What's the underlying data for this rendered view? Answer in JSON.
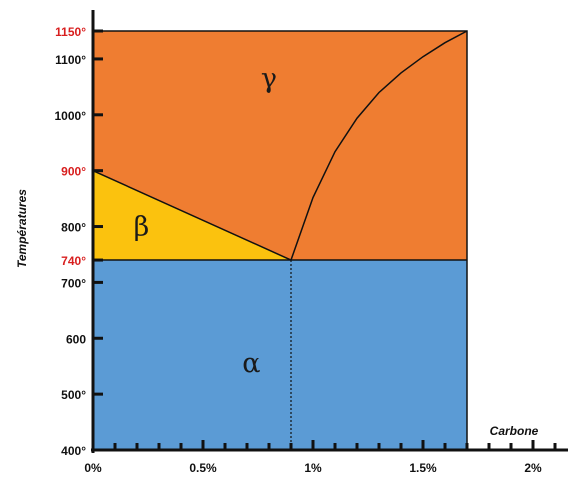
{
  "chart_data": {
    "type": "phase-diagram",
    "ylabel": "Températures",
    "xlabel": "Carbone",
    "x_unit": "% carbon",
    "xlim": [
      0,
      2.5
    ],
    "ylim": [
      400,
      1150
    ],
    "x_ticks": [
      {
        "value": 0,
        "label": "0%"
      },
      {
        "value": 0.5,
        "label": "0.5%"
      },
      {
        "value": 1,
        "label": "1%"
      },
      {
        "value": 1.5,
        "label": "1.5%"
      },
      {
        "value": 2,
        "label": "2%"
      }
    ],
    "y_ticks": [
      {
        "value": 400,
        "label": "400°",
        "highlight": false
      },
      {
        "value": 500,
        "label": "500°",
        "highlight": false
      },
      {
        "value": 600,
        "label": "600",
        "highlight": false
      },
      {
        "value": 700,
        "label": "700°",
        "highlight": false
      },
      {
        "value": 740,
        "label": "740°",
        "highlight": true
      },
      {
        "value": 800,
        "label": "800°",
        "highlight": false
      },
      {
        "value": 900,
        "label": "900°",
        "highlight": true
      },
      {
        "value": 1000,
        "label": "1000°",
        "highlight": false
      },
      {
        "value": 1100,
        "label": "1100°",
        "highlight": false
      },
      {
        "value": 1150,
        "label": "1150°",
        "highlight": true
      }
    ],
    "phases": [
      {
        "label": "α",
        "color": "#5b9bd5",
        "region": "below 740°, 0% to 1.7%",
        "label_pos": [
          0.72,
          540
        ]
      },
      {
        "label": "β",
        "color": "#fbc20e",
        "region": "triangle 900° at 0% to 740° at 0.9%",
        "label_pos": [
          0.22,
          784
        ]
      },
      {
        "label": "γ",
        "color": "#ef7d31",
        "region": "above β and 740° line, up to 1150°",
        "label_pos": [
          0.8,
          1049
        ]
      }
    ],
    "eutectoid_point": {
      "x": 0.9,
      "y": 740
    },
    "max_carbon": 1.7,
    "boundary_curve": [
      [
        0.9,
        740
      ],
      [
        1.0,
        852
      ],
      [
        1.1,
        934
      ],
      [
        1.2,
        994
      ],
      [
        1.3,
        1040
      ],
      [
        1.4,
        1075
      ],
      [
        1.5,
        1104
      ],
      [
        1.6,
        1129
      ],
      [
        1.7,
        1150
      ]
    ],
    "highlight_color": "#d81e1e",
    "text_color": "#111111"
  }
}
